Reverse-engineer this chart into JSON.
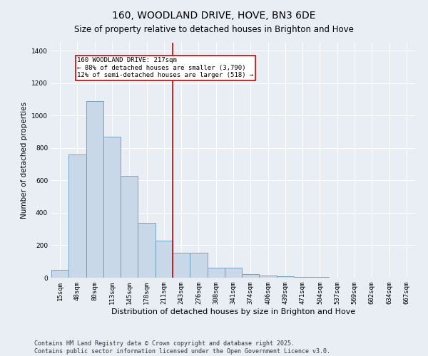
{
  "title": "160, WOODLAND DRIVE, HOVE, BN3 6DE",
  "subtitle": "Size of property relative to detached houses in Brighton and Hove",
  "xlabel": "Distribution of detached houses by size in Brighton and Hove",
  "ylabel": "Number of detached properties",
  "categories": [
    "15sqm",
    "48sqm",
    "80sqm",
    "113sqm",
    "145sqm",
    "178sqm",
    "211sqm",
    "243sqm",
    "276sqm",
    "308sqm",
    "341sqm",
    "374sqm",
    "406sqm",
    "439sqm",
    "471sqm",
    "504sqm",
    "537sqm",
    "569sqm",
    "602sqm",
    "634sqm",
    "667sqm"
  ],
  "values": [
    50,
    760,
    1090,
    870,
    630,
    340,
    230,
    155,
    155,
    60,
    60,
    20,
    13,
    8,
    5,
    3,
    1,
    1,
    0,
    0,
    0
  ],
  "bar_color": "#c8d8e8",
  "bar_edge_color": "#6699bb",
  "vline_x": 6.5,
  "vline_color": "#cc0000",
  "annotation_text": "160 WOODLAND DRIVE: 217sqm\n← 88% of detached houses are smaller (3,790)\n12% of semi-detached houses are larger (518) →",
  "annotation_box_color": "#ffffff",
  "annotation_box_edge": "#cc0000",
  "ylim": [
    0,
    1450
  ],
  "yticks": [
    0,
    200,
    400,
    600,
    800,
    1000,
    1200,
    1400
  ],
  "background_color": "#e8eef4",
  "footer": "Contains HM Land Registry data © Crown copyright and database right 2025.\nContains public sector information licensed under the Open Government Licence v3.0.",
  "title_fontsize": 10,
  "subtitle_fontsize": 8.5,
  "xlabel_fontsize": 8,
  "ylabel_fontsize": 7.5,
  "tick_fontsize": 6.5,
  "footer_fontsize": 6,
  "annotation_fontsize": 6.5
}
